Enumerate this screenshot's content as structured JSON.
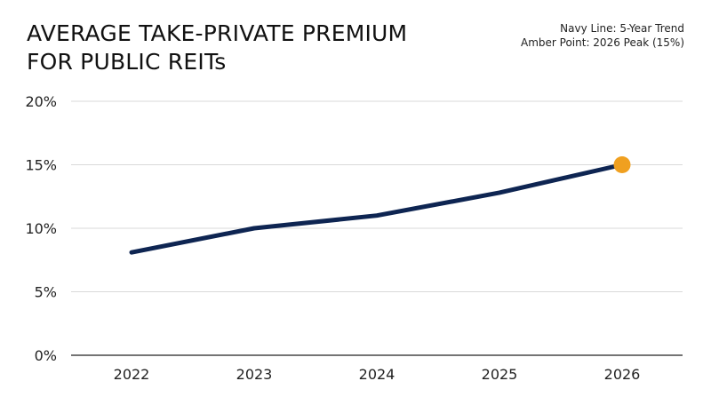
{
  "title_lines": [
    "AVERAGE TAKE-PRIVATE PREMIUM",
    "FOR PUBLIC REITs"
  ],
  "legend_notes": [
    "Navy Line: 5-Year Trend",
    "Amber Point: 2026 Peak (15%)"
  ],
  "colors": {
    "line": "#0e2552",
    "highlight": "#f0a020",
    "grid": "#d9d9d9",
    "axis": "#222222",
    "background": "#ffffff"
  },
  "chart_data": {
    "type": "line",
    "title": "AVERAGE TAKE-PRIVATE PREMIUM FOR PUBLIC REITs",
    "categories": [
      "2022",
      "2023",
      "2024",
      "2025",
      "2026"
    ],
    "series": [
      {
        "values": [
          8.1,
          10.0,
          11.0,
          12.8,
          15.0
        ]
      }
    ],
    "highlight": {
      "category": "2026",
      "value": 15.0
    },
    "y_ticks": [
      "0%",
      "5%",
      "10%",
      "15%",
      "20%"
    ],
    "y_tick_values": [
      0,
      5,
      10,
      15,
      20
    ],
    "ylim": [
      0,
      20
    ],
    "grid": true,
    "xlabel": "",
    "ylabel": ""
  }
}
